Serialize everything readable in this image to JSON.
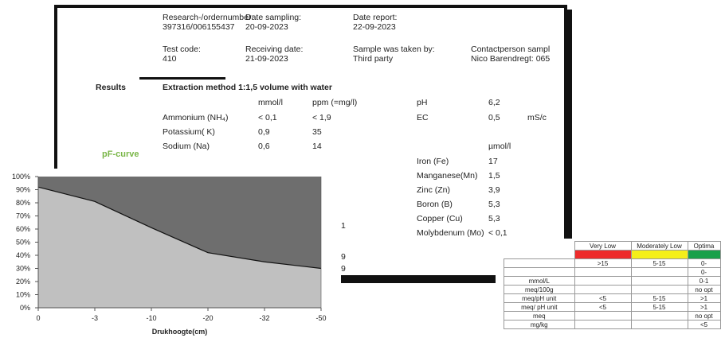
{
  "header": {
    "research_label": "Research-/ordernumber:",
    "research_value": "397316/006155437",
    "date_sampling_label": "Date sampling:",
    "date_sampling_value": "20-09-2023",
    "date_report_label": "Date report:",
    "date_report_value": "22-09-2023",
    "test_code_label": "Test code:",
    "test_code_value": "410",
    "receiving_label": "Receiving date:",
    "receiving_value": "21-09-2023",
    "taken_by_label": "Sample was taken by:",
    "taken_by_value": "Third party",
    "contact_label": "Contactperson sampl",
    "contact_value": "Nico Barendregt: 065"
  },
  "results": {
    "heading": "Results",
    "method": "Extraction method 1:1,5 volume with water",
    "col_mmol": "mmol/l",
    "col_ppm": "ppm (=mg/l)",
    "rows": [
      {
        "name": "Ammonium (NH₄)",
        "mmol": "< 0,1",
        "ppm": "< 1,9"
      },
      {
        "name": "Potassium( K)",
        "mmol": "0,9",
        "ppm": "35"
      },
      {
        "name": "Sodium (Na)",
        "mmol": "0,6",
        "ppm": "14"
      }
    ],
    "ph_label": "pH",
    "ph_value": "6,2",
    "ec_label": "EC",
    "ec_value": "0,5",
    "ec_unit": "mS/c",
    "umol_unit": "µmol/l",
    "traces": [
      {
        "name": "Iron (Fe)",
        "value": "17"
      },
      {
        "name": "Manganese(Mn)",
        "value": "1,5"
      },
      {
        "name": "Zinc (Zn)",
        "value": "3,9"
      },
      {
        "name": "Boron (B)",
        "value": "5,3"
      },
      {
        "name": "Copper (Cu)",
        "value": "5,3"
      },
      {
        "name": "Molybdenum (Mo)",
        "value": "< 0,1"
      }
    ],
    "partial_1": "9",
    "partial_2": "9",
    "partial_3": "1"
  },
  "pf_curve_label": "pF-curve",
  "chart_data": {
    "type": "area",
    "categories": [
      "0",
      "-3",
      "-10",
      "-20",
      "-32",
      "-50"
    ],
    "values": [
      92,
      81,
      61,
      42,
      35,
      30
    ],
    "cap": 100,
    "xlabel": "Drukhoogte(cm)",
    "ylabel": "",
    "ylim": [
      0,
      100
    ],
    "yticks": [
      "0%",
      "10%",
      "20%",
      "30%",
      "40%",
      "50%",
      "60%",
      "70%",
      "80%",
      "90%",
      "100%"
    ],
    "colors": {
      "area": "#c0c0c0",
      "top": "#6e6e6e",
      "line": "#111111"
    }
  },
  "sheet": {
    "headers": [
      "Very Low",
      "Moderately Low",
      "Optima"
    ],
    "header_colors": [
      "#ee2b2b",
      "#f4ef19",
      "#19a04a"
    ],
    "rows": [
      {
        "label": "",
        "c1": ">15",
        "c2": "5-15",
        "c3": "0-"
      },
      {
        "label": "",
        "c1": "",
        "c2": "",
        "c3": "0-"
      },
      {
        "label": "mmol/L",
        "c1": "",
        "c2": "",
        "c3": "0-1"
      },
      {
        "label": "meq/100g",
        "c1": "",
        "c2": "",
        "c3": "no opt"
      },
      {
        "label": "meq/pH unit",
        "c1": "<5",
        "c2": "5-15",
        "c3": ">1"
      },
      {
        "label": "meq/ pH unit",
        "c1": "<5",
        "c2": "5-15",
        "c3": ">1"
      },
      {
        "label": "meq",
        "c1": "",
        "c2": "",
        "c3": "no opt"
      },
      {
        "label": "mg/kg",
        "c1": "",
        "c2": "",
        "c3": "<5"
      }
    ]
  }
}
